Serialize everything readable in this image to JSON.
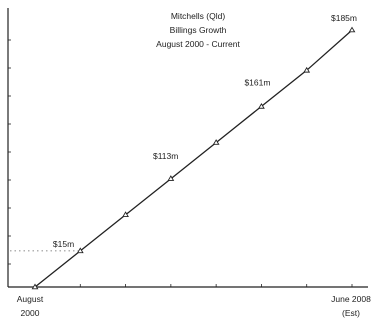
{
  "chart_data": {
    "type": "line",
    "title_lines": [
      "Mitchells (Qld)",
      "Billings Growth",
      "August 2000 - Current"
    ],
    "x_tick_labels": [
      {
        "lines": [
          "August",
          "2000"
        ]
      },
      {
        "lines": [
          "June 2008",
          "(Est)"
        ]
      }
    ],
    "series": [
      {
        "x": [
          0,
          1,
          2,
          3,
          4,
          5,
          6,
          7
        ],
        "values": [
          0,
          26,
          52,
          78,
          104,
          130,
          156,
          185
        ]
      }
    ],
    "data_labels": [
      {
        "text": "$15m",
        "y": 26
      },
      {
        "text": "$113m",
        "y": 85
      },
      {
        "text": "$161m",
        "y": 138
      },
      {
        "text": "$185m",
        "y": 185
      }
    ],
    "dotted_reference_y": 26,
    "xlim": [
      0,
      7
    ],
    "ylim": [
      0,
      198
    ],
    "grid": false,
    "color": "#222222"
  }
}
